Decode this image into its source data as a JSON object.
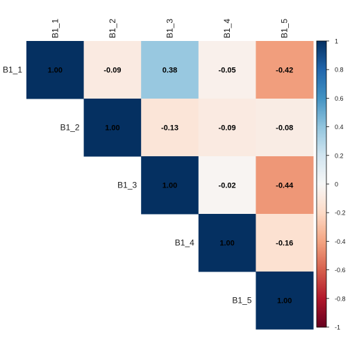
{
  "chart_data": {
    "type": "heatmap",
    "subtype": "correlation-upper-triangle",
    "variables": [
      "B1_1",
      "B1_2",
      "B1_3",
      "B1_4",
      "B1_5"
    ],
    "matrix": [
      [
        1.0,
        -0.09,
        0.38,
        -0.05,
        -0.42
      ],
      [
        null,
        1.0,
        -0.13,
        -0.09,
        -0.08
      ],
      [
        null,
        null,
        1.0,
        -0.02,
        -0.44
      ],
      [
        null,
        null,
        null,
        1.0,
        -0.16
      ],
      [
        null,
        null,
        null,
        null,
        1.0
      ]
    ],
    "value_labels": [
      [
        "1.00",
        "-0.09",
        "0.38",
        "-0.05",
        "-0.42"
      ],
      [
        null,
        "1.00",
        "-0.13",
        "-0.09",
        "-0.08"
      ],
      [
        null,
        null,
        "1.00",
        "-0.02",
        "-0.44"
      ],
      [
        null,
        null,
        null,
        "1.00",
        "-0.16"
      ],
      [
        null,
        null,
        null,
        null,
        "1.00"
      ]
    ],
    "colorbar": {
      "range": [
        -1,
        1
      ],
      "ticks": [
        -1,
        -0.8,
        -0.6,
        -0.4,
        -0.2,
        0,
        0.2,
        0.4,
        0.6,
        0.8,
        1
      ],
      "tick_labels": [
        "-1",
        "-0.8",
        "-0.6",
        "-0.4",
        "-0.2",
        "0",
        "0.2",
        "0.4",
        "0.6",
        "0.8",
        "1"
      ],
      "placement": "right"
    },
    "color_scale": [
      "#67001f",
      "#b2182b",
      "#d6604d",
      "#f4a582",
      "#fddbc7",
      "#f7f7f7",
      "#d1e5f0",
      "#92c5de",
      "#4393c3",
      "#2166ac",
      "#053061"
    ],
    "grid": false
  }
}
